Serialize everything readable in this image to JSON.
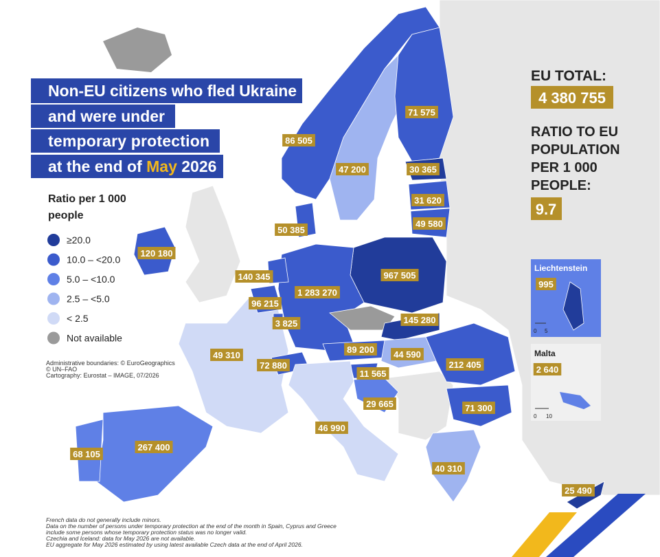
{
  "title": {
    "lines": [
      "Non-EU citizens who fled Ukraine",
      "and were under",
      "temporary protection"
    ],
    "last_line": {
      "before": "at the end of",
      "highlight": "May",
      "after": "2026"
    }
  },
  "legend": {
    "title_lines": [
      "Ratio per 1 000",
      "people"
    ],
    "items": [
      {
        "label": "≥20.0",
        "color": "#213c9a"
      },
      {
        "label": "10.0 – <20.0",
        "color": "#3b5bcc"
      },
      {
        "label": "5.0 – <10.0",
        "color": "#5f80e6"
      },
      {
        "label": "2.5 – <5.0",
        "color": "#9fb4f0"
      },
      {
        "label": "< 2.5",
        "color": "#d0daf6"
      },
      {
        "label": "Not available",
        "color": "#9a9a9a"
      }
    ]
  },
  "credits": [
    "Administrative boundaries: © EuroGeographics",
    "© UN–FAO",
    "Cartography: Eurostat – IMAGE, 07/2026"
  ],
  "eu_total": {
    "label": "EU TOTAL:",
    "value": "4 380 755"
  },
  "ratio": {
    "label_lines": [
      "RATIO TO EU",
      "POPULATION",
      "PER 1 000",
      "PEOPLE:"
    ],
    "value": "9.7"
  },
  "countries": [
    {
      "label": "120 180"
    },
    {
      "label": "86 505"
    },
    {
      "label": "47 200"
    },
    {
      "label": "71 575"
    },
    {
      "label": "30 365"
    },
    {
      "label": "31 620"
    },
    {
      "label": "49 580"
    },
    {
      "label": "50 385"
    },
    {
      "label": "140 345"
    },
    {
      "label": "1 283 270"
    },
    {
      "label": "967 505"
    },
    {
      "label": "96 215"
    },
    {
      "label": "3 825"
    },
    {
      "label": "145 280"
    },
    {
      "label": "49 310"
    },
    {
      "label": "72 880"
    },
    {
      "label": "89 200"
    },
    {
      "label": "44 590"
    },
    {
      "label": "212 405"
    },
    {
      "label": "11 565"
    },
    {
      "label": "29 665"
    },
    {
      "label": "71 300"
    },
    {
      "label": "46 990"
    },
    {
      "label": "267 400"
    },
    {
      "label": "68 105"
    },
    {
      "label": "40 310"
    },
    {
      "label": "25 490"
    }
  ],
  "insets": [
    {
      "name": "Liechtenstein",
      "label": "995",
      "scale": [
        "0",
        "5"
      ]
    },
    {
      "name": "Malta",
      "label": "2 640",
      "scale": [
        "0",
        "10"
      ]
    }
  ],
  "footnotes": [
    "French data do not generally include minors.",
    "Data on the number of persons under temporary protection at the end of the month in Spain, Cyprus and Greece",
    "include some persons whose temporary protection status was no longer valid.",
    "Czechia and Iceland: data for May 2026 are not available.",
    "EU aggregate for May 2026 estimated by using latest available Czech data at the end of April 2026."
  ]
}
